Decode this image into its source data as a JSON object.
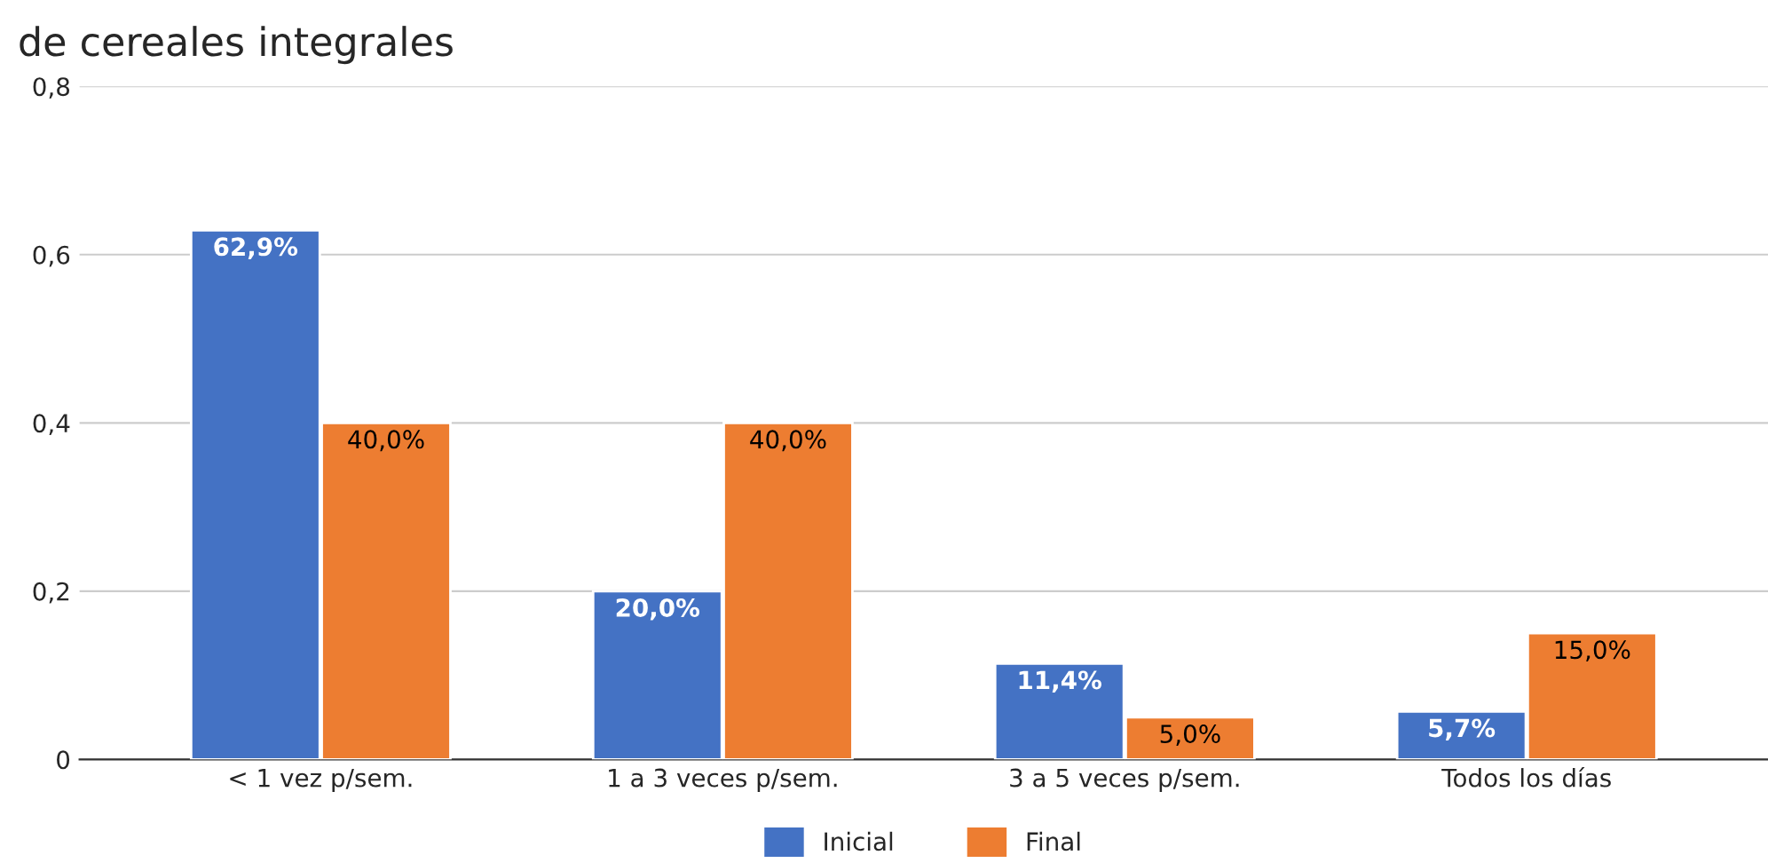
{
  "chart_data": {
    "type": "bar",
    "title": "de cereales integrales",
    "categories": [
      "< 1 vez p/sem.",
      "1 a 3 veces p/sem.",
      "3 a 5 veces p/sem.",
      "Todos los días"
    ],
    "series": [
      {
        "name": "Inicial",
        "color": "#4472c4",
        "values": [
          0.629,
          0.2,
          0.114,
          0.057
        ],
        "value_labels": [
          "62,9%",
          "20,0%",
          "11,4%",
          "5,7%"
        ]
      },
      {
        "name": "Final",
        "color": "#ed7d31",
        "values": [
          0.4,
          0.4,
          0.05,
          0.15
        ],
        "value_labels": [
          "40,0%",
          "40,0%",
          "5,0%",
          "15,0%"
        ]
      }
    ],
    "ylim": [
      0,
      0.8
    ],
    "yticks": [
      0,
      {
        "value": 0.2,
        "label": "0,2"
      },
      {
        "value": 0.4,
        "label": "0,4"
      },
      {
        "value": 0.6,
        "label": "0,6"
      },
      {
        "value": 0.8,
        "label": "0,8"
      }
    ],
    "grid": "y",
    "legend": "bottom"
  }
}
